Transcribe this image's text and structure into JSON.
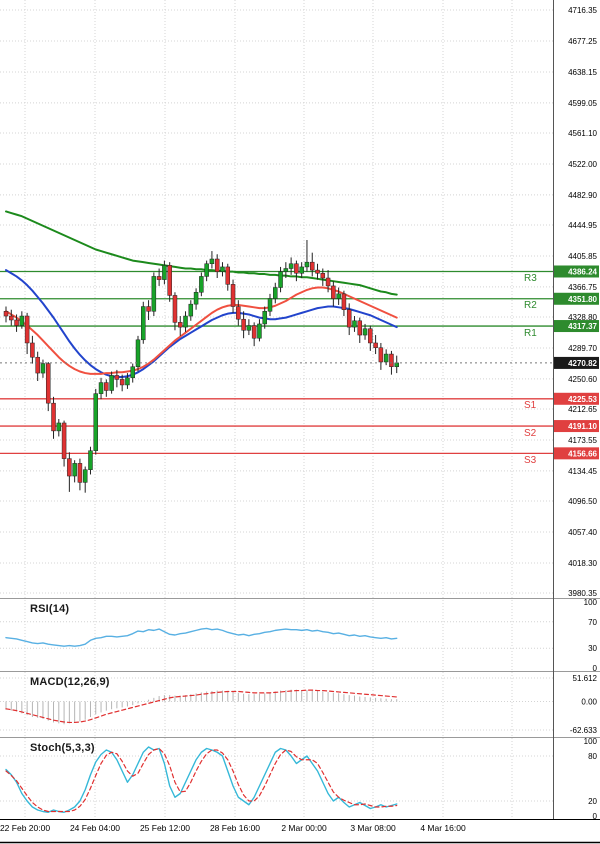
{
  "colors": {
    "up": "#18a329",
    "down": "#e03232",
    "wick": "#222222",
    "resistance": "#2e8b2e",
    "support": "#e04040",
    "current_tag": "#1a1a1a",
    "grid": "#d4d4d4",
    "rsi_line": "#58b0e3",
    "macd_hist": "#b5b5b5",
    "macd_signal": "#e03030",
    "stoch_k": "#35b8d8",
    "stoch_d": "#e03030"
  },
  "chart_data": [
    {
      "type": "candlestick",
      "name": "price-panel",
      "y_ticks": [
        "4716.35",
        "4677.25",
        "4638.15",
        "4599.05",
        "4561.10",
        "4522.00",
        "4482.90",
        "4444.95",
        "4405.85",
        "4366.75",
        "4328.80",
        "4289.70",
        "4250.60",
        "4212.65",
        "4173.55",
        "4134.45",
        "4096.50",
        "4057.40",
        "4018.30",
        "3980.35"
      ],
      "x_labels": [
        "22 Feb 20:00",
        "24 Feb 04:00",
        "25 Feb 12:00",
        "28 Feb 16:00",
        "2 Mar 00:00",
        "3 Mar 08:00",
        "4 Mar 16:00"
      ],
      "ylim": [
        3968,
        4729
      ],
      "ohlc_format": [
        "open",
        "high",
        "low",
        "close"
      ],
      "candles": [
        [
          4336,
          4342,
          4322,
          4330
        ],
        [
          4330,
          4338,
          4318,
          4325
        ],
        [
          4325,
          4332,
          4310,
          4318
        ],
        [
          4318,
          4336,
          4314,
          4330
        ],
        [
          4330,
          4334,
          4282,
          4296
        ],
        [
          4296,
          4305,
          4270,
          4278
        ],
        [
          4278,
          4285,
          4248,
          4258
        ],
        [
          4258,
          4275,
          4252,
          4270
        ],
        [
          4270,
          4272,
          4210,
          4220
        ],
        [
          4220,
          4228,
          4175,
          4185
        ],
        [
          4185,
          4200,
          4178,
          4195
        ],
        [
          4195,
          4198,
          4140,
          4150
        ],
        [
          4150,
          4158,
          4108,
          4128
        ],
        [
          4128,
          4148,
          4120,
          4144
        ],
        [
          4144,
          4150,
          4110,
          4120
        ],
        [
          4120,
          4140,
          4107,
          4136
        ],
        [
          4136,
          4165,
          4130,
          4160
        ],
        [
          4160,
          4238,
          4155,
          4232
        ],
        [
          4232,
          4252,
          4225,
          4246
        ],
        [
          4246,
          4250,
          4228,
          4236
        ],
        [
          4236,
          4260,
          4232,
          4255
        ],
        [
          4255,
          4262,
          4240,
          4250
        ],
        [
          4250,
          4256,
          4235,
          4243
        ],
        [
          4243,
          4258,
          4238,
          4252
        ],
        [
          4252,
          4270,
          4246,
          4266
        ],
        [
          4266,
          4305,
          4260,
          4300
        ],
        [
          4300,
          4348,
          4295,
          4342
        ],
        [
          4342,
          4350,
          4325,
          4336
        ],
        [
          4336,
          4385,
          4330,
          4380
        ],
        [
          4380,
          4390,
          4368,
          4376
        ],
        [
          4376,
          4400,
          4370,
          4394
        ],
        [
          4394,
          4398,
          4348,
          4356
        ],
        [
          4356,
          4360,
          4312,
          4322
        ],
        [
          4322,
          4330,
          4305,
          4316
        ],
        [
          4316,
          4336,
          4310,
          4330
        ],
        [
          4330,
          4350,
          4324,
          4345
        ],
        [
          4345,
          4365,
          4338,
          4360
        ],
        [
          4360,
          4385,
          4355,
          4380
        ],
        [
          4380,
          4400,
          4374,
          4396
        ],
        [
          4396,
          4412,
          4390,
          4402
        ],
        [
          4402,
          4408,
          4378,
          4386
        ],
        [
          4386,
          4398,
          4380,
          4392
        ],
        [
          4392,
          4396,
          4362,
          4370
        ],
        [
          4370,
          4376,
          4334,
          4342
        ],
        [
          4342,
          4350,
          4318,
          4326
        ],
        [
          4326,
          4336,
          4302,
          4312
        ],
        [
          4312,
          4326,
          4306,
          4318
        ],
        [
          4318,
          4322,
          4292,
          4302
        ],
        [
          4302,
          4326,
          4298,
          4320
        ],
        [
          4320,
          4342,
          4314,
          4336
        ],
        [
          4336,
          4358,
          4330,
          4352
        ],
        [
          4352,
          4372,
          4346,
          4366
        ],
        [
          4366,
          4392,
          4360,
          4386
        ],
        [
          4386,
          4398,
          4378,
          4390
        ],
        [
          4390,
          4404,
          4382,
          4396
        ],
        [
          4396,
          4400,
          4374,
          4384
        ],
        [
          4384,
          4398,
          4378,
          4392
        ],
        [
          4392,
          4426,
          4386,
          4398
        ],
        [
          4398,
          4410,
          4380,
          4388
        ],
        [
          4388,
          4396,
          4376,
          4384
        ],
        [
          4384,
          4390,
          4368,
          4378
        ],
        [
          4378,
          4388,
          4360,
          4368
        ],
        [
          4368,
          4374,
          4342,
          4352
        ],
        [
          4352,
          4366,
          4344,
          4358
        ],
        [
          4358,
          4362,
          4330,
          4338
        ],
        [
          4338,
          4346,
          4306,
          4316
        ],
        [
          4316,
          4330,
          4310,
          4324
        ],
        [
          4324,
          4328,
          4296,
          4306
        ],
        [
          4306,
          4320,
          4300,
          4314
        ],
        [
          4314,
          4318,
          4286,
          4296
        ],
        [
          4296,
          4306,
          4282,
          4290
        ],
        [
          4290,
          4296,
          4262,
          4272
        ],
        [
          4272,
          4288,
          4268,
          4282
        ],
        [
          4282,
          4286,
          4256,
          4266
        ],
        [
          4266,
          4280,
          4258,
          4270.82
        ]
      ],
      "series": [
        {
          "name": "ma-long",
          "color": "#1c8a1c",
          "values": [
            4462,
            4460,
            4458,
            4456,
            4453,
            4450,
            4447,
            4444,
            4441,
            4438,
            4435,
            4432,
            4429,
            4426,
            4423,
            4420,
            4417,
            4414,
            4412,
            4410,
            4408,
            4406,
            4404,
            4402,
            4400,
            4399,
            4398,
            4397,
            4396,
            4395,
            4394,
            4393,
            4392,
            4391,
            4390,
            4390,
            4389,
            4389,
            4388,
            4388,
            4387,
            4387,
            4386,
            4386,
            4385,
            4385,
            4384,
            4384,
            4383,
            4383,
            4382,
            4382,
            4381,
            4381,
            4380,
            4380,
            4379,
            4379,
            4378,
            4377,
            4376,
            4375,
            4374,
            4373,
            4372,
            4371,
            4370,
            4369,
            4367,
            4365,
            4363,
            4361,
            4360,
            4358,
            4357
          ]
        },
        {
          "name": "ma-mid",
          "color": "#2244cc",
          "values": [
            4388,
            4384,
            4380,
            4375,
            4369,
            4362,
            4354,
            4346,
            4337,
            4328,
            4318,
            4308,
            4298,
            4289,
            4281,
            4274,
            4268,
            4263,
            4259,
            4256,
            4254,
            4253,
            4253,
            4254,
            4256,
            4259,
            4263,
            4268,
            4273,
            4279,
            4285,
            4291,
            4296,
            4301,
            4305,
            4309,
            4313,
            4317,
            4321,
            4325,
            4328,
            4331,
            4333,
            4334,
            4334,
            4333,
            4332,
            4330,
            4328,
            4327,
            4326,
            4326,
            4327,
            4328,
            4330,
            4332,
            4334,
            4336,
            4338,
            4340,
            4341,
            4342,
            4342,
            4341,
            4340,
            4339,
            4337,
            4335,
            4333,
            4331,
            4328,
            4325,
            4322,
            4319,
            4316
          ]
        },
        {
          "name": "ma-fast",
          "color": "#f05040",
          "values": [
            4336,
            4332,
            4328,
            4323,
            4318,
            4312,
            4306,
            4299,
            4292,
            4285,
            4278,
            4272,
            4267,
            4263,
            4260,
            4258,
            4257,
            4257,
            4257,
            4258,
            4258,
            4259,
            4259,
            4260,
            4261,
            4263,
            4266,
            4270,
            4275,
            4281,
            4287,
            4293,
            4299,
            4304,
            4309,
            4314,
            4319,
            4324,
            4329,
            4334,
            4338,
            4341,
            4343,
            4344,
            4344,
            4343,
            4342,
            4341,
            4340,
            4340,
            4341,
            4343,
            4346,
            4349,
            4353,
            4357,
            4360,
            4363,
            4365,
            4366,
            4366,
            4365,
            4363,
            4361,
            4358,
            4355,
            4352,
            4349,
            4346,
            4343,
            4340,
            4337,
            4334,
            4331,
            4328
          ]
        }
      ],
      "levels": {
        "resistances": [
          {
            "label": "R3",
            "value": "4386.24"
          },
          {
            "label": "R2",
            "value": "4351.80"
          },
          {
            "label": "R1",
            "value": "4317.37"
          }
        ],
        "supports": [
          {
            "label": "S1",
            "value": "4225.53"
          },
          {
            "label": "S2",
            "value": "4191.10"
          },
          {
            "label": "S3",
            "value": "4156.66"
          }
        ],
        "current": {
          "value": "4270.82"
        }
      }
    },
    {
      "type": "line",
      "name": "rsi-panel",
      "title": "RSI(14)",
      "ticks": [
        "100",
        "70",
        "30",
        "0"
      ],
      "ylim": [
        0,
        100
      ],
      "values": [
        46,
        45,
        44,
        42,
        40,
        38,
        37,
        38,
        36,
        35,
        34,
        33,
        34,
        33,
        34,
        36,
        42,
        45,
        46,
        48,
        48,
        47,
        48,
        49,
        52,
        56,
        55,
        58,
        57,
        59,
        55,
        51,
        50,
        52,
        53,
        55,
        57,
        59,
        60,
        58,
        59,
        57,
        54,
        52,
        50,
        51,
        49,
        51,
        52,
        54,
        55,
        57,
        58,
        59,
        58,
        58,
        57,
        58,
        56,
        57,
        55,
        54,
        52,
        53,
        51,
        49,
        50,
        48,
        49,
        47,
        46,
        45,
        46,
        44,
        45
      ]
    },
    {
      "type": "bar-line",
      "name": "macd-panel",
      "title": "MACD(12,26,9)",
      "ticks": [
        "51.612",
        "0.00",
        "-62.633"
      ],
      "ylim": [
        -62.633,
        51.612
      ],
      "histogram": [
        -18,
        -20,
        -22,
        -26,
        -30,
        -34,
        -36,
        -38,
        -42,
        -46,
        -48,
        -50,
        -48,
        -46,
        -44,
        -40,
        -34,
        -28,
        -24,
        -20,
        -17,
        -15,
        -13,
        -11,
        -8,
        -4,
        0,
        4,
        8,
        12,
        14,
        14,
        13,
        13,
        14,
        16,
        18,
        20,
        22,
        23,
        24,
        24,
        23,
        21,
        19,
        17,
        16,
        16,
        17,
        18,
        20,
        22,
        24,
        25,
        26,
        26,
        25,
        25,
        24,
        23,
        22,
        21,
        19,
        18,
        16,
        14,
        13,
        11,
        10,
        9,
        8,
        7,
        6,
        5,
        5
      ],
      "signal": [
        -16,
        -18,
        -20,
        -23,
        -26,
        -29,
        -32,
        -35,
        -38,
        -41,
        -43,
        -45,
        -46,
        -46,
        -45,
        -43,
        -40,
        -36,
        -32,
        -28,
        -25,
        -22,
        -19,
        -16,
        -13,
        -10,
        -7,
        -4,
        -1,
        2,
        5,
        8,
        10,
        11,
        12,
        13,
        14,
        16,
        17,
        19,
        20,
        21,
        22,
        22,
        22,
        21,
        20,
        19,
        19,
        19,
        19,
        20,
        21,
        22,
        23,
        24,
        24,
        25,
        25,
        24,
        24,
        23,
        22,
        21,
        20,
        19,
        18,
        17,
        16,
        15,
        14,
        13,
        12,
        11,
        10
      ]
    },
    {
      "type": "line",
      "name": "stoch-panel",
      "title": "Stoch(5,3,3)",
      "ticks": [
        "100",
        "80",
        "20",
        "0"
      ],
      "ylim": [
        0,
        100
      ],
      "series": [
        {
          "name": "percent-k",
          "values": [
            62,
            55,
            45,
            30,
            20,
            12,
            8,
            6,
            5,
            8,
            6,
            5,
            8,
            12,
            20,
            35,
            55,
            72,
            82,
            88,
            85,
            75,
            60,
            45,
            55,
            70,
            85,
            92,
            88,
            90,
            70,
            40,
            25,
            30,
            45,
            60,
            75,
            85,
            90,
            88,
            85,
            80,
            60,
            40,
            25,
            20,
            15,
            25,
            40,
            55,
            70,
            85,
            90,
            88,
            80,
            70,
            75,
            80,
            70,
            60,
            45,
            30,
            20,
            25,
            18,
            12,
            15,
            18,
            14,
            10,
            12,
            15,
            12,
            14,
            16
          ]
        },
        {
          "name": "percent-d",
          "values": [
            60,
            54,
            47,
            37,
            27,
            18,
            12,
            8,
            6,
            6,
            6,
            6,
            6,
            8,
            13,
            22,
            37,
            54,
            70,
            81,
            85,
            83,
            73,
            60,
            53,
            57,
            70,
            82,
            88,
            90,
            83,
            67,
            45,
            32,
            33,
            45,
            60,
            73,
            83,
            88,
            88,
            84,
            75,
            60,
            42,
            28,
            20,
            20,
            27,
            40,
            55,
            70,
            82,
            88,
            86,
            79,
            75,
            75,
            75,
            70,
            58,
            45,
            32,
            25,
            21,
            18,
            15,
            15,
            16,
            14,
            12,
            12,
            13,
            13,
            14
          ]
        }
      ]
    }
  ]
}
